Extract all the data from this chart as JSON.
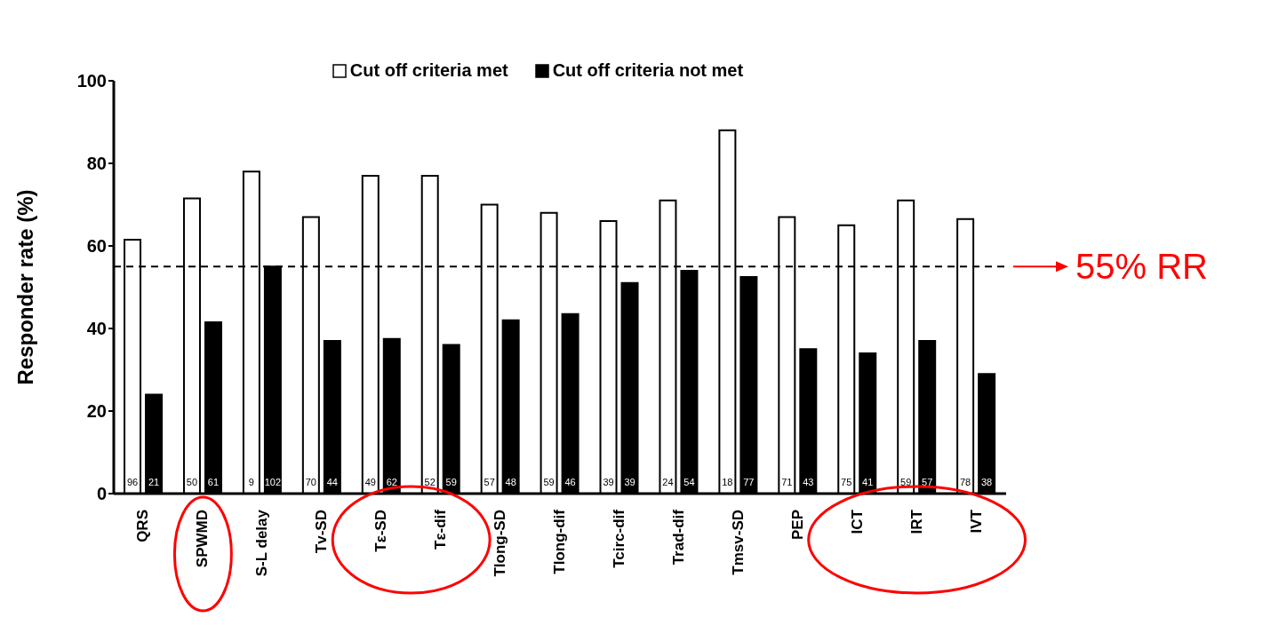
{
  "chart_data": {
    "type": "bar",
    "ylabel": "Responder rate (%)",
    "categories": [
      "QRS",
      "SPWMD",
      "S-L delay",
      "Tv-SD",
      "Tε-SD",
      "Tε-dif",
      "Tlong-SD",
      "Tlong-dif",
      "Tcirc-dif",
      "Trad-dif",
      "Tmsv-SD",
      "PEP",
      "ICT",
      "IRT",
      "IVT"
    ],
    "series": [
      {
        "name": "Cut off criteria met",
        "color": "#ffffff",
        "values": [
          61.5,
          71.5,
          78,
          67,
          77,
          77,
          70,
          68,
          66,
          71,
          88,
          67,
          65,
          71,
          66.5
        ]
      },
      {
        "name": "Cut off criteria not met",
        "color": "#000000",
        "values": [
          24,
          41.5,
          55,
          37,
          37.5,
          36,
          42,
          43.5,
          51,
          54,
          52.5,
          35,
          34,
          37,
          29
        ]
      }
    ],
    "annotations": [
      {
        "text": "96",
        "x": "QRS",
        "y": 2
      },
      {
        "text": "21",
        "x": "QRS",
        "y": 2
      },
      {
        "text": "50",
        "x": "SPWMD",
        "y": 2
      },
      {
        "text": "61",
        "x": "SPWMD",
        "y": 2
      },
      {
        "text": "9",
        "x": "S-L delay",
        "y": 2
      },
      {
        "text": "102",
        "x": "S-L delay",
        "y": 2
      },
      {
        "text": "70",
        "x": "Tv-SD",
        "y": 2
      },
      {
        "text": "44",
        "x": "Tv-SD",
        "y": 2
      },
      {
        "text": "49",
        "x": "Tε-SD",
        "y": 2
      },
      {
        "text": "62",
        "x": "Tε-SD",
        "y": 2
      },
      {
        "text": "52",
        "x": "Tε-dif",
        "y": 2
      },
      {
        "text": "59",
        "x": "Tε-dif",
        "y": 2
      },
      {
        "text": "57",
        "x": "Tlong-SD",
        "y": 2
      },
      {
        "text": "48",
        "x": "Tlong-SD",
        "y": 2
      },
      {
        "text": "59",
        "x": "Tlong-dif",
        "y": 2
      },
      {
        "text": "46",
        "x": "Tlong-dif",
        "y": 2
      },
      {
        "text": "39",
        "x": "Tcirc-dif",
        "y": 2
      },
      {
        "text": "39",
        "x": "Tcirc-dif",
        "y": 2
      },
      {
        "text": "24",
        "x": "Trad-dif",
        "y": 2
      },
      {
        "text": "54",
        "x": "Trad-dif",
        "y": 2
      },
      {
        "text": "18",
        "x": "Tmsv-SD",
        "y": 2
      },
      {
        "text": "77",
        "x": "Tmsv-SD",
        "y": 2
      },
      {
        "text": "71",
        "x": "PEP",
        "y": 2
      },
      {
        "text": "43",
        "x": "PEP",
        "y": 2
      },
      {
        "text": "75",
        "x": "ICT",
        "y": 2
      },
      {
        "text": "41",
        "x": "ICT",
        "y": 2
      },
      {
        "text": "59",
        "x": "IRT",
        "y": 2
      },
      {
        "text": "57",
        "x": "IRT",
        "y": 2
      },
      {
        "text": "78",
        "x": "IVT",
        "y": 2
      },
      {
        "text": "38",
        "x": "IVT",
        "y": 2
      }
    ],
    "ylim": [
      0,
      100
    ],
    "yticks": [
      0,
      20,
      40,
      60,
      80,
      100
    ],
    "grid": false,
    "legend": "top",
    "ref_lines": [
      {
        "axis": "y",
        "value": 55,
        "label": "55% RR",
        "color": "#000000",
        "line_style": "dashed"
      }
    ]
  }
}
